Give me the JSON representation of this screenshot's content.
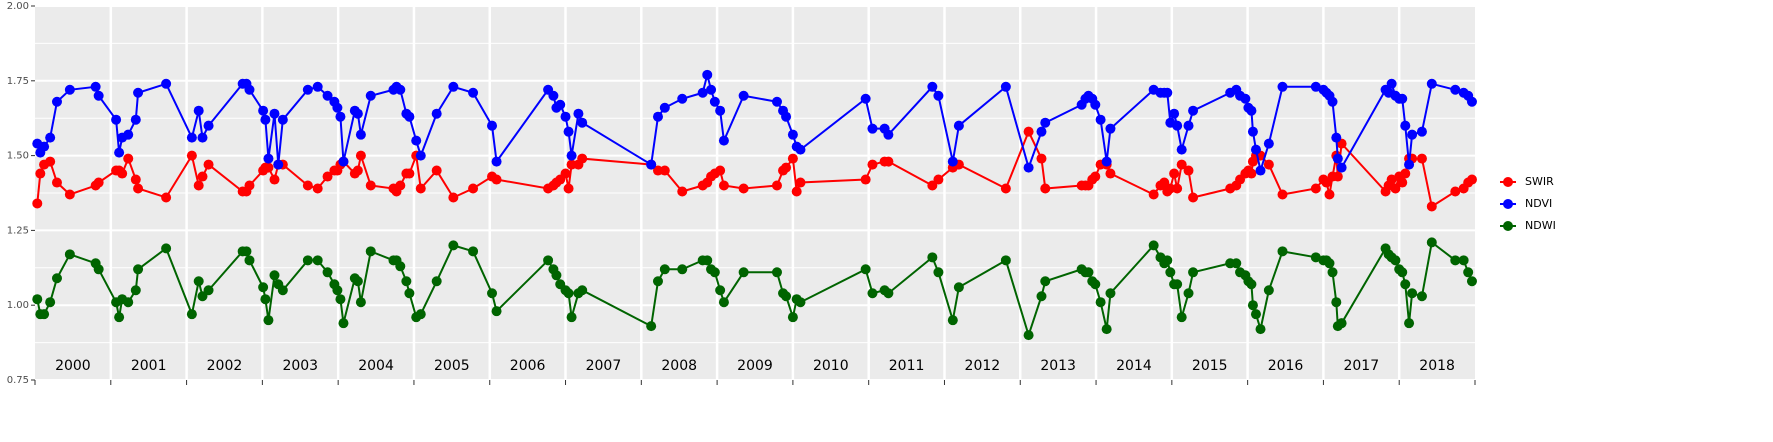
{
  "chart_data": {
    "type": "line",
    "x": [
      2000.03,
      2000.07,
      2000.12,
      2000.2,
      2000.29,
      2000.46,
      2000.8,
      2000.84,
      2001.07,
      2001.11,
      2001.15,
      2001.23,
      2001.33,
      2001.36,
      2001.73,
      2002.07,
      2002.16,
      2002.21,
      2002.29,
      2002.74,
      2002.79,
      2002.83,
      2003.01,
      2003.04,
      2003.08,
      2003.16,
      2003.21,
      2003.27,
      2003.6,
      2003.73,
      2003.86,
      2003.95,
      2003.99,
      2004.03,
      2004.07,
      2004.22,
      2004.26,
      2004.3,
      2004.43,
      2004.73,
      2004.77,
      2004.82,
      2004.9,
      2004.94,
      2005.03,
      2005.09,
      2005.3,
      2005.52,
      2005.78,
      2006.03,
      2006.09,
      2006.77,
      2006.84,
      2006.88,
      2006.93,
      2007.0,
      2007.04,
      2007.08,
      2007.17,
      2007.22,
      2008.13,
      2008.22,
      2008.31,
      2008.54,
      2008.81,
      2008.87,
      2008.92,
      2008.97,
      2009.04,
      2009.09,
      2009.35,
      2009.79,
      2009.87,
      2009.91,
      2010.0,
      2010.05,
      2010.1,
      2010.96,
      2011.05,
      2011.21,
      2011.26,
      2011.84,
      2011.92,
      2012.11,
      2012.19,
      2012.81,
      2013.11,
      2013.28,
      2013.33,
      2013.81,
      2013.86,
      2013.9,
      2013.95,
      2013.99,
      2014.06,
      2014.14,
      2014.19,
      2014.76,
      2014.85,
      2014.9,
      2014.94,
      2014.98,
      2015.03,
      2015.07,
      2015.13,
      2015.22,
      2015.28,
      2015.77,
      2015.85,
      2015.9,
      2015.97,
      2016.01,
      2016.05,
      2016.07,
      2016.11,
      2016.17,
      2016.28,
      2016.46,
      2016.9,
      2017.0,
      2017.04,
      2017.08,
      2017.12,
      2017.17,
      2017.19,
      2017.24,
      2017.82,
      2017.86,
      2017.9,
      2017.95,
      2018.0,
      2018.04,
      2018.08,
      2018.13,
      2018.17,
      2018.3,
      2018.43,
      2018.74,
      2018.85,
      2018.91,
      2018.96
    ],
    "series": [
      {
        "name": "SWIR",
        "color": "#ff0000",
        "values": [
          1.34,
          1.44,
          1.47,
          1.48,
          1.41,
          1.37,
          1.4,
          1.41,
          1.45,
          1.45,
          1.44,
          1.49,
          1.42,
          1.39,
          1.36,
          1.5,
          1.4,
          1.43,
          1.47,
          1.38,
          1.38,
          1.4,
          1.45,
          1.46,
          1.46,
          1.42,
          1.47,
          1.47,
          1.4,
          1.39,
          1.43,
          1.45,
          1.45,
          1.47,
          1.48,
          1.44,
          1.45,
          1.5,
          1.4,
          1.39,
          1.38,
          1.4,
          1.44,
          1.44,
          1.5,
          1.39,
          1.45,
          1.36,
          1.39,
          1.43,
          1.42,
          1.39,
          1.4,
          1.41,
          1.42,
          1.44,
          1.39,
          1.47,
          1.47,
          1.49,
          1.47,
          1.45,
          1.45,
          1.38,
          1.4,
          1.41,
          1.43,
          1.44,
          1.45,
          1.4,
          1.39,
          1.4,
          1.45,
          1.46,
          1.49,
          1.38,
          1.41,
          1.42,
          1.47,
          1.48,
          1.48,
          1.4,
          1.42,
          1.46,
          1.47,
          1.39,
          1.58,
          1.49,
          1.39,
          1.4,
          1.4,
          1.4,
          1.42,
          1.43,
          1.47,
          1.47,
          1.44,
          1.37,
          1.4,
          1.41,
          1.38,
          1.39,
          1.44,
          1.39,
          1.47,
          1.45,
          1.36,
          1.39,
          1.4,
          1.42,
          1.44,
          1.45,
          1.44,
          1.48,
          1.5,
          1.5,
          1.47,
          1.37,
          1.39,
          1.42,
          1.41,
          1.37,
          1.43,
          1.5,
          1.43,
          1.54,
          1.38,
          1.4,
          1.42,
          1.39,
          1.43,
          1.41,
          1.44,
          1.49,
          1.49,
          1.49,
          1.33,
          1.38,
          1.39,
          1.41,
          1.42
        ]
      },
      {
        "name": "NDVI",
        "color": "#0000ff",
        "values": [
          1.54,
          1.51,
          1.53,
          1.56,
          1.68,
          1.72,
          1.73,
          1.7,
          1.62,
          1.51,
          1.56,
          1.57,
          1.62,
          1.71,
          1.74,
          1.56,
          1.65,
          1.56,
          1.6,
          1.74,
          1.74,
          1.72,
          1.65,
          1.62,
          1.49,
          1.64,
          1.47,
          1.62,
          1.72,
          1.73,
          1.7,
          1.68,
          1.66,
          1.63,
          1.48,
          1.65,
          1.64,
          1.57,
          1.7,
          1.72,
          1.73,
          1.72,
          1.64,
          1.63,
          1.55,
          1.5,
          1.64,
          1.73,
          1.71,
          1.6,
          1.48,
          1.72,
          1.7,
          1.66,
          1.67,
          1.63,
          1.58,
          1.5,
          1.64,
          1.61,
          1.47,
          1.63,
          1.66,
          1.69,
          1.71,
          1.77,
          1.72,
          1.68,
          1.65,
          1.55,
          1.7,
          1.68,
          1.65,
          1.63,
          1.57,
          1.53,
          1.52,
          1.69,
          1.59,
          1.59,
          1.57,
          1.73,
          1.7,
          1.48,
          1.6,
          1.73,
          1.46,
          1.58,
          1.61,
          1.67,
          1.69,
          1.7,
          1.69,
          1.67,
          1.62,
          1.48,
          1.59,
          1.72,
          1.71,
          1.71,
          1.71,
          1.61,
          1.64,
          1.6,
          1.52,
          1.6,
          1.65,
          1.71,
          1.72,
          1.7,
          1.69,
          1.66,
          1.65,
          1.58,
          1.52,
          1.45,
          1.54,
          1.73,
          1.73,
          1.72,
          1.71,
          1.7,
          1.68,
          1.56,
          1.49,
          1.46,
          1.72,
          1.71,
          1.74,
          1.7,
          1.69,
          1.69,
          1.6,
          1.47,
          1.57,
          1.58,
          1.74,
          1.72,
          1.71,
          1.7,
          1.68
        ]
      },
      {
        "name": "NDWI",
        "color": "#006400",
        "values": [
          1.02,
          0.97,
          0.97,
          1.01,
          1.09,
          1.17,
          1.14,
          1.12,
          1.01,
          0.96,
          1.02,
          1.01,
          1.05,
          1.12,
          1.19,
          0.97,
          1.08,
          1.03,
          1.05,
          1.18,
          1.18,
          1.15,
          1.06,
          1.02,
          0.95,
          1.1,
          1.07,
          1.05,
          1.15,
          1.15,
          1.11,
          1.07,
          1.05,
          1.02,
          0.94,
          1.09,
          1.08,
          1.01,
          1.18,
          1.15,
          1.15,
          1.13,
          1.08,
          1.04,
          0.96,
          0.97,
          1.08,
          1.2,
          1.18,
          1.04,
          0.98,
          1.15,
          1.12,
          1.1,
          1.07,
          1.05,
          1.04,
          0.96,
          1.04,
          1.05,
          0.93,
          1.08,
          1.12,
          1.12,
          1.15,
          1.15,
          1.12,
          1.11,
          1.05,
          1.01,
          1.11,
          1.11,
          1.04,
          1.03,
          0.96,
          1.02,
          1.01,
          1.12,
          1.04,
          1.05,
          1.04,
          1.16,
          1.11,
          0.95,
          1.06,
          1.15,
          0.9,
          1.03,
          1.08,
          1.12,
          1.11,
          1.11,
          1.08,
          1.07,
          1.01,
          0.92,
          1.04,
          1.2,
          1.16,
          1.14,
          1.15,
          1.11,
          1.07,
          1.07,
          0.96,
          1.04,
          1.11,
          1.14,
          1.14,
          1.11,
          1.1,
          1.08,
          1.07,
          1.0,
          0.97,
          0.92,
          1.05,
          1.18,
          1.16,
          1.15,
          1.15,
          1.14,
          1.11,
          1.01,
          0.93,
          0.94,
          1.19,
          1.17,
          1.16,
          1.15,
          1.12,
          1.11,
          1.07,
          0.94,
          1.04,
          1.03,
          1.21,
          1.15,
          1.15,
          1.11,
          1.08
        ]
      }
    ],
    "xlim": [
      2000,
      2019
    ],
    "xticks": [
      {
        "value": 2000.5,
        "label": "2000"
      },
      {
        "value": 2001.5,
        "label": "2001"
      },
      {
        "value": 2002.5,
        "label": "2002"
      },
      {
        "value": 2003.5,
        "label": "2003"
      },
      {
        "value": 2004.5,
        "label": "2004"
      },
      {
        "value": 2005.5,
        "label": "2005"
      },
      {
        "value": 2006.5,
        "label": "2006"
      },
      {
        "value": 2007.5,
        "label": "2007"
      },
      {
        "value": 2008.5,
        "label": "2008"
      },
      {
        "value": 2009.5,
        "label": "2009"
      },
      {
        "value": 2010.5,
        "label": "2010"
      },
      {
        "value": 2011.5,
        "label": "2011"
      },
      {
        "value": 2012.5,
        "label": "2012"
      },
      {
        "value": 2013.5,
        "label": "2013"
      },
      {
        "value": 2014.5,
        "label": "2014"
      },
      {
        "value": 2015.5,
        "label": "2015"
      },
      {
        "value": 2016.5,
        "label": "2016"
      },
      {
        "value": 2017.5,
        "label": "2017"
      },
      {
        "value": 2018.5,
        "label": "2018"
      }
    ],
    "ylim": [
      0.75,
      2
    ],
    "yticks": [
      {
        "value": 0.75,
        "label": "0.75"
      },
      {
        "value": 1,
        "label": "1.00"
      },
      1.25,
      {
        "value": 1.5,
        "label": "1.50"
      },
      1.75,
      {
        "value": 2,
        "label": "2.00"
      }
    ],
    "grid": true,
    "legend": "right"
  }
}
